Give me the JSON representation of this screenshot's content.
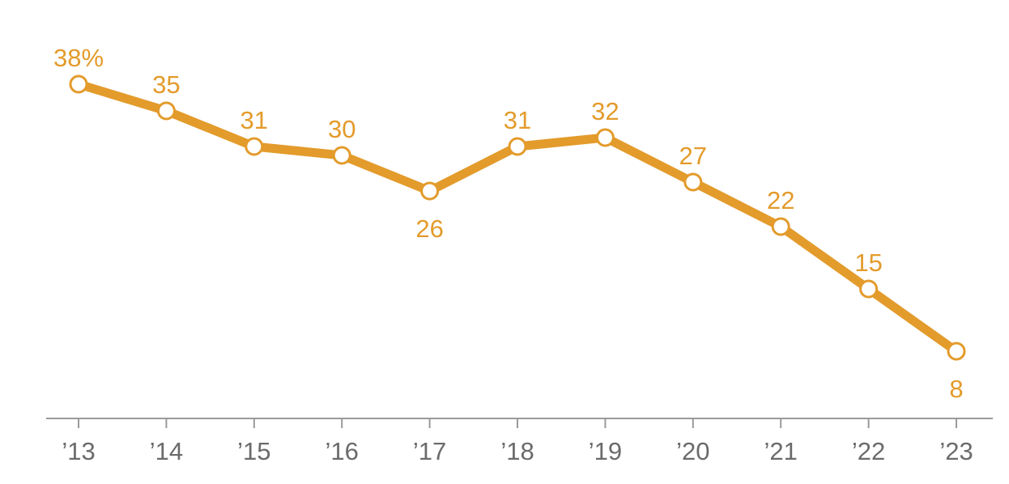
{
  "chart_data": {
    "type": "line",
    "categories": [
      "’13",
      "’14",
      "’15",
      "’16",
      "’17",
      "’18",
      "’19",
      "’20",
      "’21",
      "’22",
      "’23"
    ],
    "series": [
      {
        "values": [
          38,
          35,
          31,
          30,
          26,
          31,
          32,
          27,
          22,
          15,
          8
        ],
        "data_labels": [
          "38%",
          "35",
          "31",
          "30",
          "26",
          "31",
          "32",
          "27",
          "22",
          "15",
          "8"
        ]
      }
    ],
    "ylim": [
      0,
      38
    ],
    "grid": false,
    "colors": {
      "line": "#E39B2B",
      "marker_fill": "#FFFFFF",
      "label": "#E39B2B",
      "axis": "#9A9A9A",
      "tick_label": "#6B6B6B"
    }
  }
}
